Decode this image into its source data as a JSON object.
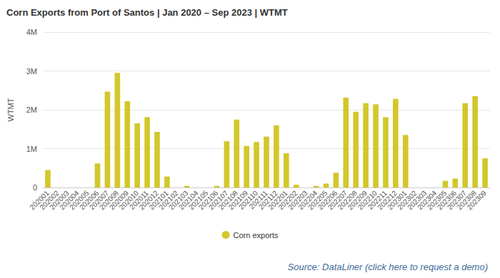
{
  "chart_data": {
    "type": "bar",
    "title": "Corn Exports from Port of Santos | Jan 2020 – Sep 2023 | WTMT",
    "y_label": "WTMT",
    "source": "Source: DataLiner (click here to request a demo)",
    "categories": [
      "202001",
      "202002",
      "202003",
      "202004",
      "202005",
      "202006",
      "202007",
      "202008",
      "202009",
      "202010",
      "202011",
      "202012",
      "202101",
      "202102",
      "202103",
      "202104",
      "202105",
      "202106",
      "202107",
      "202108",
      "202109",
      "202110",
      "202111",
      "202112",
      "202201",
      "202202",
      "202203",
      "202204",
      "202205",
      "202206",
      "202207",
      "202208",
      "202209",
      "202210",
      "202211",
      "202212",
      "202301",
      "202302",
      "202303",
      "202304",
      "202305",
      "202306",
      "202307",
      "202308",
      "202309"
    ],
    "series": [
      {
        "name": "Corn exports",
        "color": "#d3c72b",
        "values": [
          450000,
          0,
          0,
          0,
          0,
          620000,
          2470000,
          2950000,
          2220000,
          1650000,
          1810000,
          1430000,
          280000,
          0,
          40000,
          0,
          0,
          40000,
          1190000,
          1750000,
          1070000,
          1170000,
          1310000,
          1600000,
          880000,
          70000,
          0,
          40000,
          100000,
          380000,
          2310000,
          1950000,
          2170000,
          2140000,
          1810000,
          2280000,
          1350000,
          0,
          0,
          0,
          170000,
          230000,
          2170000,
          2350000,
          750000
        ]
      }
    ],
    "ylim": [
      0,
      4000000
    ],
    "yticks": [
      0,
      {
        "value": 1000000,
        "label": "1M"
      },
      {
        "value": 2000000,
        "label": "2M"
      },
      {
        "value": 3000000,
        "label": "3M"
      },
      {
        "value": 4000000,
        "label": "4M"
      }
    ],
    "grid": true,
    "legend": "bottom"
  }
}
